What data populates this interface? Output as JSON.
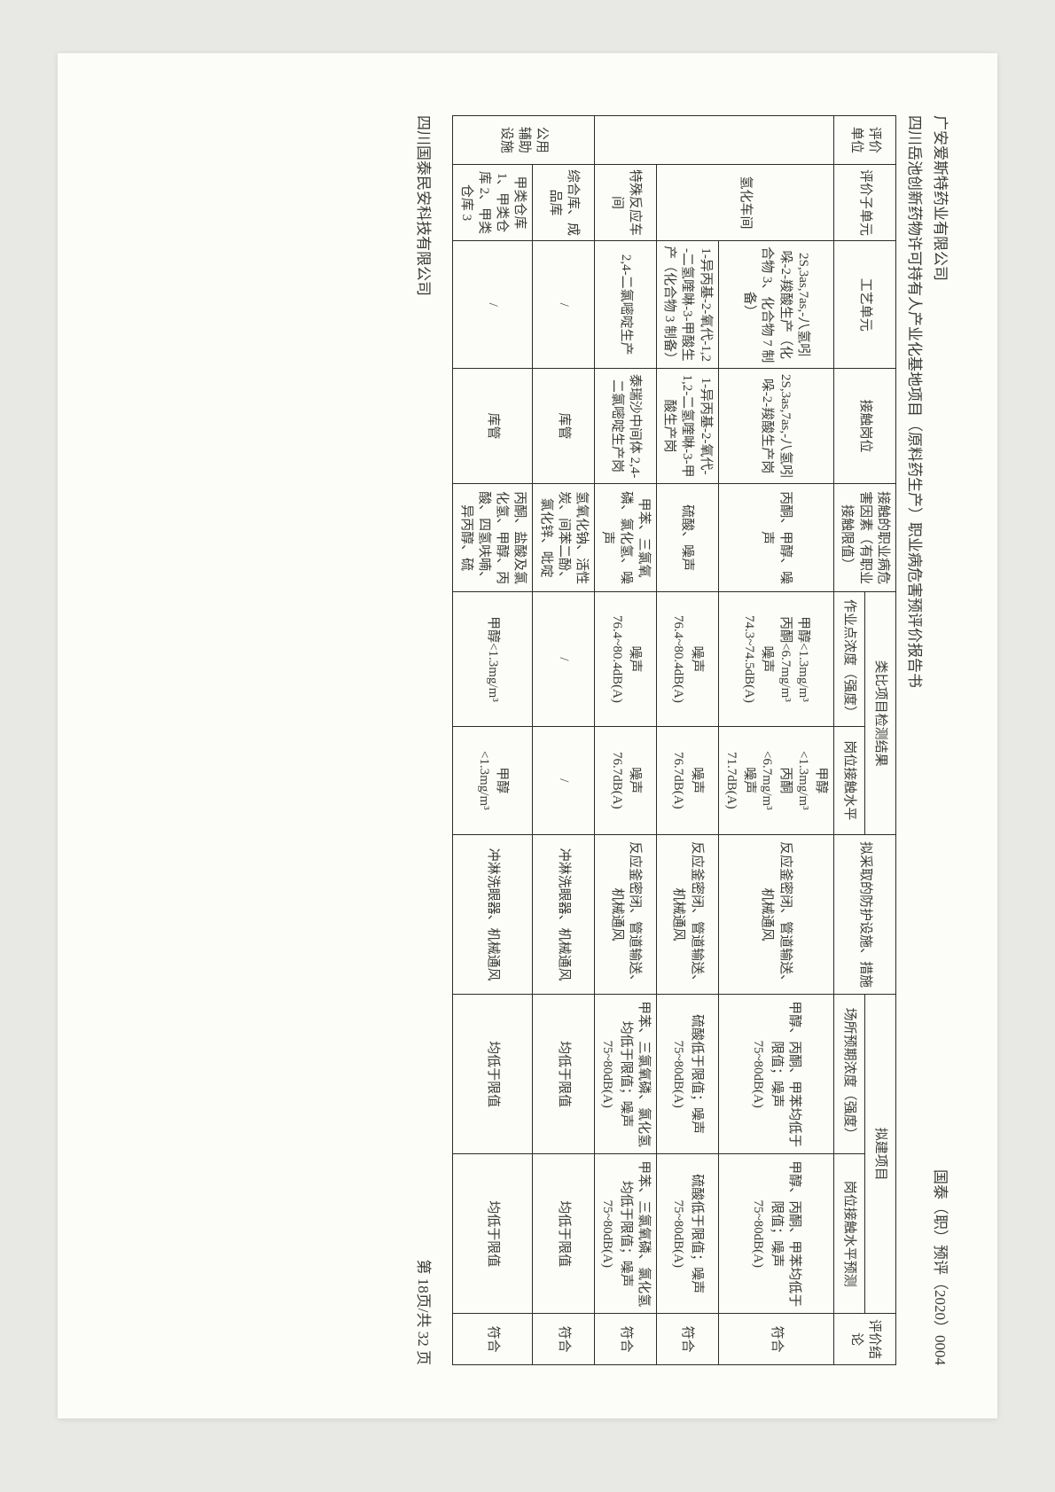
{
  "header": {
    "left1": "广安爱斯特药业有限公司",
    "right1": "国泰（职）预评（2020）0004",
    "left2": "四川岳池创新药物许可持有人产业化基地项目（原料药生产）职业病危害预评价报告书"
  },
  "footer": {
    "left": "四川国泰民安科技有限公司",
    "right": "第 18页/共 32 页"
  },
  "thead": {
    "eval_unit": "评价单位",
    "sub_unit": "评价子单元",
    "process_unit": "工艺单元",
    "post": "接触岗位",
    "hazard": "接触的职业病危害因素（有职业接触限值）",
    "analogy_group": "类比项目检测结果",
    "analogy_point": "作业点浓度（强度）",
    "analogy_level": "岗位接触水平",
    "measures": "拟采取的防护设施、措施",
    "proposed_group": "拟建项目",
    "proposed_conc": "场所预期浓度（强度）",
    "proposed_level": "岗位接触水平预测",
    "conclusion": "评价结论"
  },
  "rows": [
    {
      "unit_rowspan": 3,
      "unit": "",
      "sub_rowspan": 3,
      "sub": "氢化车间",
      "process": "2S,3as,7as,-八氢吲哚-2-羧酸生产（化合物 3、化合物 7 制备）",
      "post": "2S,3as,7as,-八氢吲哚-2-羧酸生产岗",
      "hazard": "丙酮、甲醇、噪声",
      "a_point": "甲醇<1.3mg/m³\n丙酮<6.7mg/m³\n噪声\n74.3~74.5dB(A)",
      "a_level": "甲醇\n<1.3mg/m³\n丙酮\n<6.7mg/m³\n噪声\n71.7dB(A)",
      "measures": "反应釜密闭、管道输送、机械通风",
      "p_conc": "甲醇、丙酮、甲苯均低于限值；噪声\n75~80dB(A)",
      "p_level": "甲醇、丙酮、甲苯均低于限值；噪声\n75~80dB(A)",
      "concl": "符合"
    },
    {
      "process": "1-异丙基-2-氧代-1,2-二氢喹啉-3-甲酸生产（化合物 3 制备）",
      "post": "1-异丙基-2-氧代-1,2-二氢喹啉-3-甲酸生产岗",
      "hazard": "硫酸、噪声",
      "a_point": "噪声\n76.4~80.4dB(A)",
      "a_level": "噪声\n76.7dB(A)",
      "measures": "反应釜密闭、管道输送、机械通风",
      "p_conc": "硫酸低于限值；噪声\n75~80dB(A)",
      "p_level": "硫酸低于限值；噪声\n75~80dB(A)",
      "concl": "符合"
    },
    {
      "sub_override": "特殊反应车间",
      "process": "2,4-二氯嘧啶生产",
      "post": "泰瑞沙中间体 2,4-二氯嘧啶生产岗",
      "hazard": "甲苯、三氯氧磷、氯化氢、噪声",
      "a_point": "噪声\n76.4~80.4dB(A)",
      "a_level": "噪声\n76.7dB(A)",
      "measures": "反应釜密闭、管道输送、机械通风",
      "p_conc": "甲苯、三氯氧磷、氯化氢均低于限值；噪声\n75~80dB(A)",
      "p_level": "甲苯、三氯氧磷、氯化氢均低于限值；噪声\n75~80dB(A)",
      "concl": "符合"
    }
  ],
  "aux_rows": [
    {
      "unit_rowspan": 2,
      "unit": "公用辅助设施",
      "sub": "综合库、成品库",
      "process": "/",
      "post": "库管",
      "hazard": "氢氧化钠、活性炭、间苯二酚、氯化锌、吡啶",
      "a_point": "/",
      "a_level": "/",
      "measures": "冲淋洗眼器、机械通风",
      "p_conc": "均低于限值",
      "p_level": "均低于限值",
      "concl": "符合"
    },
    {
      "sub": "甲类仓库 1、甲类仓库 2、甲类仓库 3",
      "process": "/",
      "post": "库管",
      "hazard": "丙酮、盐酸及氯化氢、甲醇、丙酸、四氢呋喃、异丙醇、硫",
      "a_point": "甲醇<1.3mg/m³",
      "a_level": "甲醇\n<1.3mg/m³",
      "measures": "冲淋洗眼器、机械通风",
      "p_conc": "均低于限值",
      "p_level": "均低于限值",
      "concl": "符合"
    }
  ],
  "colors": {
    "border": "#2b2b29",
    "text": "#3a3a38",
    "paper": "#fcfcf9",
    "bg": "#e8e8e4"
  }
}
